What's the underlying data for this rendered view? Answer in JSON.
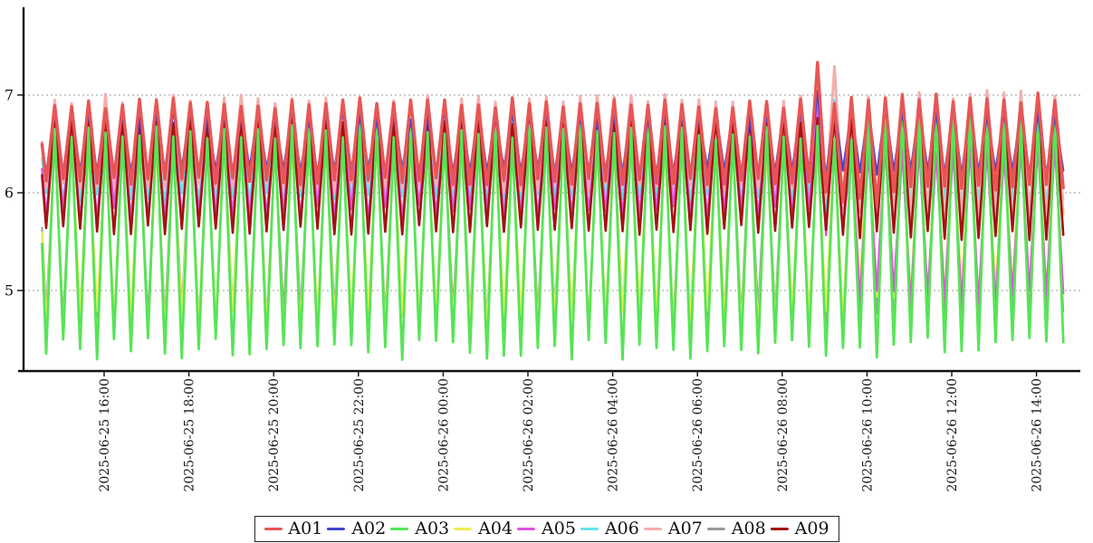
{
  "chart_data": {
    "type": "line",
    "title": "",
    "time_base": "2025-06-25 16:00",
    "x_start": "2025-06-25 14:32",
    "x_end": "2025-06-26 14:39",
    "period_minutes": 24,
    "peak_offset_minutes": 2,
    "x_ticks": [
      "2025-06-25 16:00",
      "2025-06-25 18:00",
      "2025-06-25 20:00",
      "2025-06-25 22:00",
      "2025-06-26 00:00",
      "2025-06-26 02:00",
      "2025-06-26 04:00",
      "2025-06-26 06:00",
      "2025-06-26 08:00",
      "2025-06-26 10:00",
      "2025-06-26 12:00",
      "2025-06-26 14:00"
    ],
    "y_ticks": [
      5,
      6,
      7
    ],
    "ylim": [
      4.18,
      7.9
    ],
    "grid": "horizontal-dotted",
    "legend_position": "bottom-center",
    "draw_order": [
      "A08",
      "A04",
      "A06",
      "A07",
      "A05",
      "A09",
      "A03",
      "A02",
      "A01"
    ],
    "series": [
      {
        "name": "A01",
        "color": "#e85555",
        "width": 3.4,
        "jitter": {
          "peak": 0.06,
          "trough": 0.04
        },
        "segments": [
          {
            "until": "2025-06-26 08:40",
            "peak": 6.92,
            "trough": 6.12
          },
          {
            "until": "2025-06-26 09:02",
            "peak": 7.3,
            "trough": 6.02
          },
          {
            "until": "2025-06-26 09:14",
            "peak": 6.92,
            "trough": 5.98
          },
          {
            "until": "2025-06-26 09:36",
            "peak": 7.28,
            "trough": 5.9
          },
          {
            "until": "2025-06-26 10:20",
            "peak": 6.95,
            "trough": 5.92
          },
          {
            "until": "2025-06-26 14:40",
            "peak": 6.97,
            "trough": 6.05
          }
        ]
      },
      {
        "name": "A02",
        "color": "#4444cc",
        "width": 2.4,
        "jitter": {
          "peak": 0.05,
          "trough": 0.04
        },
        "segments": [
          {
            "until": "2025-06-26 08:40",
            "peak": 6.8,
            "trough": 6.22
          },
          {
            "until": "2025-06-26 09:05",
            "peak": 7.05,
            "trough": 6.18
          },
          {
            "until": "2025-06-26 14:40",
            "peak": 6.84,
            "trough": 6.2
          }
        ]
      },
      {
        "name": "A03",
        "color": "#57e457",
        "width": 2.8,
        "jitter": {
          "peak": 0.08,
          "trough": 0.12
        },
        "segments": [
          {
            "until": "2025-06-26 09:40",
            "peak": 6.62,
            "trough": 4.4
          },
          {
            "until": "2025-06-26 14:40",
            "peak": 6.8,
            "trough": 4.42
          }
        ]
      },
      {
        "name": "A04",
        "color": "#eded55",
        "width": 2.2,
        "jitter": {
          "peak": 0.06,
          "trough": 0.1
        },
        "segments": [
          {
            "until": "2025-06-26 09:40",
            "peak": 6.5,
            "trough": 4.7
          },
          {
            "until": "2025-06-26 14:40",
            "peak": 6.55,
            "trough": 4.95
          }
        ]
      },
      {
        "name": "A05",
        "color": "#dd55dd",
        "width": 2.4,
        "jitter": {
          "peak": 0.06,
          "trough": 0.08
        },
        "segments": [
          {
            "until": "2025-06-26 08:40",
            "peak": 6.7,
            "trough": 5.8
          },
          {
            "until": "2025-06-26 09:36",
            "peak": 6.85,
            "trough": 5.62
          },
          {
            "until": "2025-06-26 14:40",
            "peak": 6.45,
            "trough": 4.92
          }
        ]
      },
      {
        "name": "A06",
        "color": "#63e3ea",
        "width": 2.4,
        "jitter": {
          "peak": 0.05,
          "trough": 0.05
        },
        "segments": [
          {
            "until": "2025-06-26 08:40",
            "peak": 6.72,
            "trough": 5.95
          },
          {
            "until": "2025-06-26 09:36",
            "peak": 6.95,
            "trough": 5.85
          },
          {
            "until": "2025-06-26 14:40",
            "peak": 6.75,
            "trough": 5.9
          }
        ]
      },
      {
        "name": "A07",
        "color": "#f2b0ae",
        "width": 3.0,
        "jitter": {
          "peak": 0.05,
          "trough": 0.06
        },
        "segments": [
          {
            "until": "2025-06-26 08:40",
            "peak": 6.96,
            "trough": 6.06
          },
          {
            "until": "2025-06-26 09:10",
            "peak": 7.1,
            "trough": 5.95
          },
          {
            "until": "2025-06-26 09:36",
            "peak": 7.32,
            "trough": 5.85
          },
          {
            "until": "2025-06-26 14:40",
            "peak": 7.0,
            "trough": 5.74
          }
        ]
      },
      {
        "name": "A08",
        "color": "#999999",
        "width": 2.0,
        "jitter": {
          "peak": 0.05,
          "trough": 0.08
        },
        "segments": [
          {
            "until": "2025-06-26 14:40",
            "peak": 6.5,
            "trough": 4.75
          }
        ]
      },
      {
        "name": "A09",
        "color": "#a31212",
        "width": 2.6,
        "jitter": {
          "peak": 0.05,
          "trough": 0.05
        },
        "segments": [
          {
            "until": "2025-06-26 09:36",
            "peak": 6.75,
            "trough": 5.62
          },
          {
            "until": "2025-06-26 14:40",
            "peak": 6.8,
            "trough": 5.56
          }
        ]
      }
    ]
  }
}
